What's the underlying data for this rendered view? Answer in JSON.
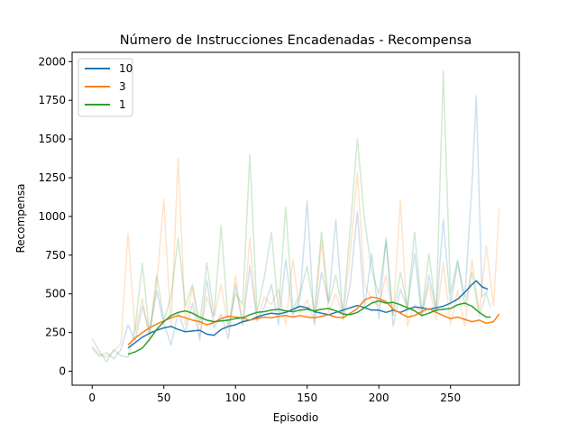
{
  "chart_data": {
    "type": "line",
    "title": "Número de Instrucciones Encadenadas - Recompensa",
    "xlabel": "Episodio",
    "ylabel": "Recompensa",
    "xlim": [
      -14,
      298
    ],
    "ylim": [
      -90,
      2060
    ],
    "xticks": [
      0,
      50,
      100,
      150,
      200,
      250
    ],
    "yticks": [
      0,
      250,
      500,
      750,
      1000,
      1250,
      1500,
      1750,
      2000
    ],
    "grid": false,
    "legend_position": "top-left",
    "series": [
      {
        "name": "10",
        "color": "#1f77b4",
        "smoothed": [
          [
            25,
            150
          ],
          [
            30,
            185
          ],
          [
            35,
            220
          ],
          [
            40,
            245
          ],
          [
            45,
            265
          ],
          [
            50,
            280
          ],
          [
            55,
            290
          ],
          [
            60,
            270
          ],
          [
            65,
            255
          ],
          [
            70,
            260
          ],
          [
            75,
            265
          ],
          [
            80,
            240
          ],
          [
            85,
            232
          ],
          [
            90,
            270
          ],
          [
            95,
            290
          ],
          [
            100,
            300
          ],
          [
            105,
            320
          ],
          [
            110,
            330
          ],
          [
            115,
            350
          ],
          [
            120,
            365
          ],
          [
            125,
            375
          ],
          [
            130,
            370
          ],
          [
            135,
            380
          ],
          [
            140,
            400
          ],
          [
            145,
            420
          ],
          [
            150,
            410
          ],
          [
            155,
            385
          ],
          [
            160,
            375
          ],
          [
            165,
            365
          ],
          [
            170,
            380
          ],
          [
            175,
            395
          ],
          [
            180,
            410
          ],
          [
            185,
            425
          ],
          [
            190,
            410
          ],
          [
            195,
            395
          ],
          [
            200,
            395
          ],
          [
            205,
            380
          ],
          [
            210,
            395
          ],
          [
            215,
            380
          ],
          [
            220,
            400
          ],
          [
            225,
            415
          ],
          [
            230,
            410
          ],
          [
            235,
            400
          ],
          [
            240,
            410
          ],
          [
            245,
            420
          ],
          [
            250,
            440
          ],
          [
            255,
            465
          ],
          [
            260,
            510
          ],
          [
            265,
            560
          ],
          [
            268,
            585
          ],
          [
            272,
            545
          ],
          [
            276,
            530
          ]
        ],
        "raw": [
          [
            0,
            150
          ],
          [
            5,
            95
          ],
          [
            10,
            120
          ],
          [
            15,
            80
          ],
          [
            20,
            140
          ],
          [
            25,
            300
          ],
          [
            30,
            200
          ],
          [
            35,
            420
          ],
          [
            40,
            260
          ],
          [
            45,
            520
          ],
          [
            50,
            310
          ],
          [
            55,
            170
          ],
          [
            60,
            380
          ],
          [
            65,
            250
          ],
          [
            70,
            440
          ],
          [
            75,
            200
          ],
          [
            80,
            590
          ],
          [
            85,
            280
          ],
          [
            90,
            370
          ],
          [
            95,
            210
          ],
          [
            100,
            560
          ],
          [
            105,
            300
          ],
          [
            110,
            680
          ],
          [
            115,
            330
          ],
          [
            120,
            410
          ],
          [
            125,
            560
          ],
          [
            130,
            300
          ],
          [
            135,
            720
          ],
          [
            140,
            360
          ],
          [
            145,
            470
          ],
          [
            150,
            1100
          ],
          [
            155,
            300
          ],
          [
            160,
            640
          ],
          [
            165,
            450
          ],
          [
            170,
            980
          ],
          [
            175,
            330
          ],
          [
            180,
            560
          ],
          [
            185,
            1030
          ],
          [
            190,
            410
          ],
          [
            195,
            760
          ],
          [
            200,
            340
          ],
          [
            205,
            860
          ],
          [
            210,
            290
          ],
          [
            215,
            530
          ],
          [
            220,
            410
          ],
          [
            225,
            760
          ],
          [
            230,
            350
          ],
          [
            235,
            620
          ],
          [
            240,
            390
          ],
          [
            245,
            980
          ],
          [
            250,
            430
          ],
          [
            255,
            700
          ],
          [
            260,
            480
          ],
          [
            265,
            1200
          ],
          [
            268,
            1780
          ],
          [
            272,
            480
          ],
          [
            276,
            520
          ]
        ]
      },
      {
        "name": "3",
        "color": "#ff7f0e",
        "smoothed": [
          [
            25,
            170
          ],
          [
            30,
            215
          ],
          [
            35,
            250
          ],
          [
            40,
            280
          ],
          [
            45,
            305
          ],
          [
            50,
            325
          ],
          [
            55,
            345
          ],
          [
            60,
            360
          ],
          [
            65,
            345
          ],
          [
            70,
            330
          ],
          [
            75,
            320
          ],
          [
            80,
            300
          ],
          [
            85,
            315
          ],
          [
            90,
            340
          ],
          [
            95,
            355
          ],
          [
            100,
            350
          ],
          [
            105,
            345
          ],
          [
            110,
            330
          ],
          [
            115,
            340
          ],
          [
            120,
            350
          ],
          [
            125,
            345
          ],
          [
            130,
            355
          ],
          [
            135,
            360
          ],
          [
            140,
            350
          ],
          [
            145,
            360
          ],
          [
            150,
            350
          ],
          [
            155,
            345
          ],
          [
            160,
            355
          ],
          [
            165,
            365
          ],
          [
            170,
            350
          ],
          [
            175,
            345
          ],
          [
            180,
            375
          ],
          [
            185,
            405
          ],
          [
            190,
            460
          ],
          [
            195,
            480
          ],
          [
            200,
            470
          ],
          [
            205,
            450
          ],
          [
            210,
            400
          ],
          [
            215,
            375
          ],
          [
            220,
            350
          ],
          [
            225,
            360
          ],
          [
            230,
            385
          ],
          [
            235,
            405
          ],
          [
            240,
            380
          ],
          [
            245,
            360
          ],
          [
            250,
            340
          ],
          [
            255,
            350
          ],
          [
            260,
            335
          ],
          [
            265,
            320
          ],
          [
            270,
            330
          ],
          [
            275,
            310
          ],
          [
            280,
            320
          ],
          [
            284,
            370
          ]
        ],
        "raw": [
          [
            0,
            160
          ],
          [
            5,
            110
          ],
          [
            10,
            90
          ],
          [
            15,
            130
          ],
          [
            20,
            180
          ],
          [
            25,
            890
          ],
          [
            30,
            250
          ],
          [
            35,
            470
          ],
          [
            40,
            200
          ],
          [
            45,
            560
          ],
          [
            50,
            1110
          ],
          [
            55,
            280
          ],
          [
            60,
            1380
          ],
          [
            65,
            300
          ],
          [
            70,
            540
          ],
          [
            75,
            230
          ],
          [
            80,
            480
          ],
          [
            85,
            350
          ],
          [
            90,
            560
          ],
          [
            95,
            260
          ],
          [
            100,
            620
          ],
          [
            105,
            300
          ],
          [
            110,
            860
          ],
          [
            115,
            320
          ],
          [
            120,
            480
          ],
          [
            125,
            430
          ],
          [
            130,
            530
          ],
          [
            135,
            300
          ],
          [
            140,
            720
          ],
          [
            145,
            380
          ],
          [
            150,
            460
          ],
          [
            155,
            320
          ],
          [
            160,
            840
          ],
          [
            165,
            380
          ],
          [
            170,
            500
          ],
          [
            175,
            350
          ],
          [
            180,
            760
          ],
          [
            185,
            1280
          ],
          [
            190,
            560
          ],
          [
            195,
            460
          ],
          [
            200,
            420
          ],
          [
            205,
            620
          ],
          [
            210,
            360
          ],
          [
            215,
            1100
          ],
          [
            220,
            290
          ],
          [
            225,
            430
          ],
          [
            230,
            370
          ],
          [
            235,
            560
          ],
          [
            240,
            330
          ],
          [
            245,
            700
          ],
          [
            250,
            300
          ],
          [
            255,
            520
          ],
          [
            260,
            290
          ],
          [
            265,
            720
          ],
          [
            270,
            380
          ],
          [
            275,
            810
          ],
          [
            280,
            420
          ],
          [
            284,
            1050
          ]
        ]
      },
      {
        "name": "1",
        "color": "#2ca02c",
        "smoothed": [
          [
            25,
            110
          ],
          [
            30,
            125
          ],
          [
            35,
            150
          ],
          [
            40,
            205
          ],
          [
            45,
            270
          ],
          [
            50,
            320
          ],
          [
            55,
            360
          ],
          [
            60,
            380
          ],
          [
            65,
            390
          ],
          [
            70,
            375
          ],
          [
            75,
            350
          ],
          [
            80,
            330
          ],
          [
            85,
            320
          ],
          [
            90,
            325
          ],
          [
            95,
            330
          ],
          [
            100,
            340
          ],
          [
            105,
            345
          ],
          [
            110,
            365
          ],
          [
            115,
            380
          ],
          [
            120,
            385
          ],
          [
            125,
            395
          ],
          [
            130,
            400
          ],
          [
            135,
            390
          ],
          [
            140,
            385
          ],
          [
            145,
            395
          ],
          [
            150,
            400
          ],
          [
            155,
            390
          ],
          [
            160,
            400
          ],
          [
            165,
            405
          ],
          [
            170,
            390
          ],
          [
            175,
            370
          ],
          [
            180,
            365
          ],
          [
            185,
            380
          ],
          [
            190,
            410
          ],
          [
            195,
            440
          ],
          [
            200,
            455
          ],
          [
            205,
            440
          ],
          [
            210,
            445
          ],
          [
            215,
            430
          ],
          [
            220,
            410
          ],
          [
            225,
            390
          ],
          [
            230,
            360
          ],
          [
            235,
            375
          ],
          [
            240,
            395
          ],
          [
            245,
            400
          ],
          [
            250,
            405
          ],
          [
            255,
            430
          ],
          [
            260,
            440
          ],
          [
            265,
            420
          ],
          [
            270,
            380
          ],
          [
            275,
            350
          ],
          [
            278,
            350
          ]
        ],
        "raw": [
          [
            0,
            210
          ],
          [
            5,
            130
          ],
          [
            10,
            60
          ],
          [
            15,
            140
          ],
          [
            20,
            100
          ],
          [
            25,
            90
          ],
          [
            30,
            280
          ],
          [
            35,
            700
          ],
          [
            40,
            240
          ],
          [
            45,
            620
          ],
          [
            50,
            330
          ],
          [
            55,
            480
          ],
          [
            60,
            860
          ],
          [
            65,
            420
          ],
          [
            70,
            560
          ],
          [
            75,
            300
          ],
          [
            80,
            700
          ],
          [
            85,
            360
          ],
          [
            90,
            940
          ],
          [
            95,
            300
          ],
          [
            100,
            500
          ],
          [
            105,
            430
          ],
          [
            110,
            1400
          ],
          [
            115,
            380
          ],
          [
            120,
            600
          ],
          [
            125,
            900
          ],
          [
            130,
            380
          ],
          [
            135,
            1060
          ],
          [
            140,
            400
          ],
          [
            145,
            500
          ],
          [
            150,
            680
          ],
          [
            155,
            380
          ],
          [
            160,
            900
          ],
          [
            165,
            440
          ],
          [
            170,
            620
          ],
          [
            175,
            380
          ],
          [
            180,
            920
          ],
          [
            185,
            1500
          ],
          [
            190,
            980
          ],
          [
            195,
            650
          ],
          [
            200,
            500
          ],
          [
            205,
            840
          ],
          [
            210,
            360
          ],
          [
            215,
            640
          ],
          [
            220,
            420
          ],
          [
            225,
            900
          ],
          [
            230,
            380
          ],
          [
            235,
            760
          ],
          [
            240,
            380
          ],
          [
            245,
            1940
          ],
          [
            250,
            500
          ],
          [
            255,
            720
          ],
          [
            260,
            420
          ],
          [
            265,
            640
          ],
          [
            270,
            360
          ],
          [
            275,
            500
          ],
          [
            278,
            410
          ]
        ]
      }
    ]
  }
}
